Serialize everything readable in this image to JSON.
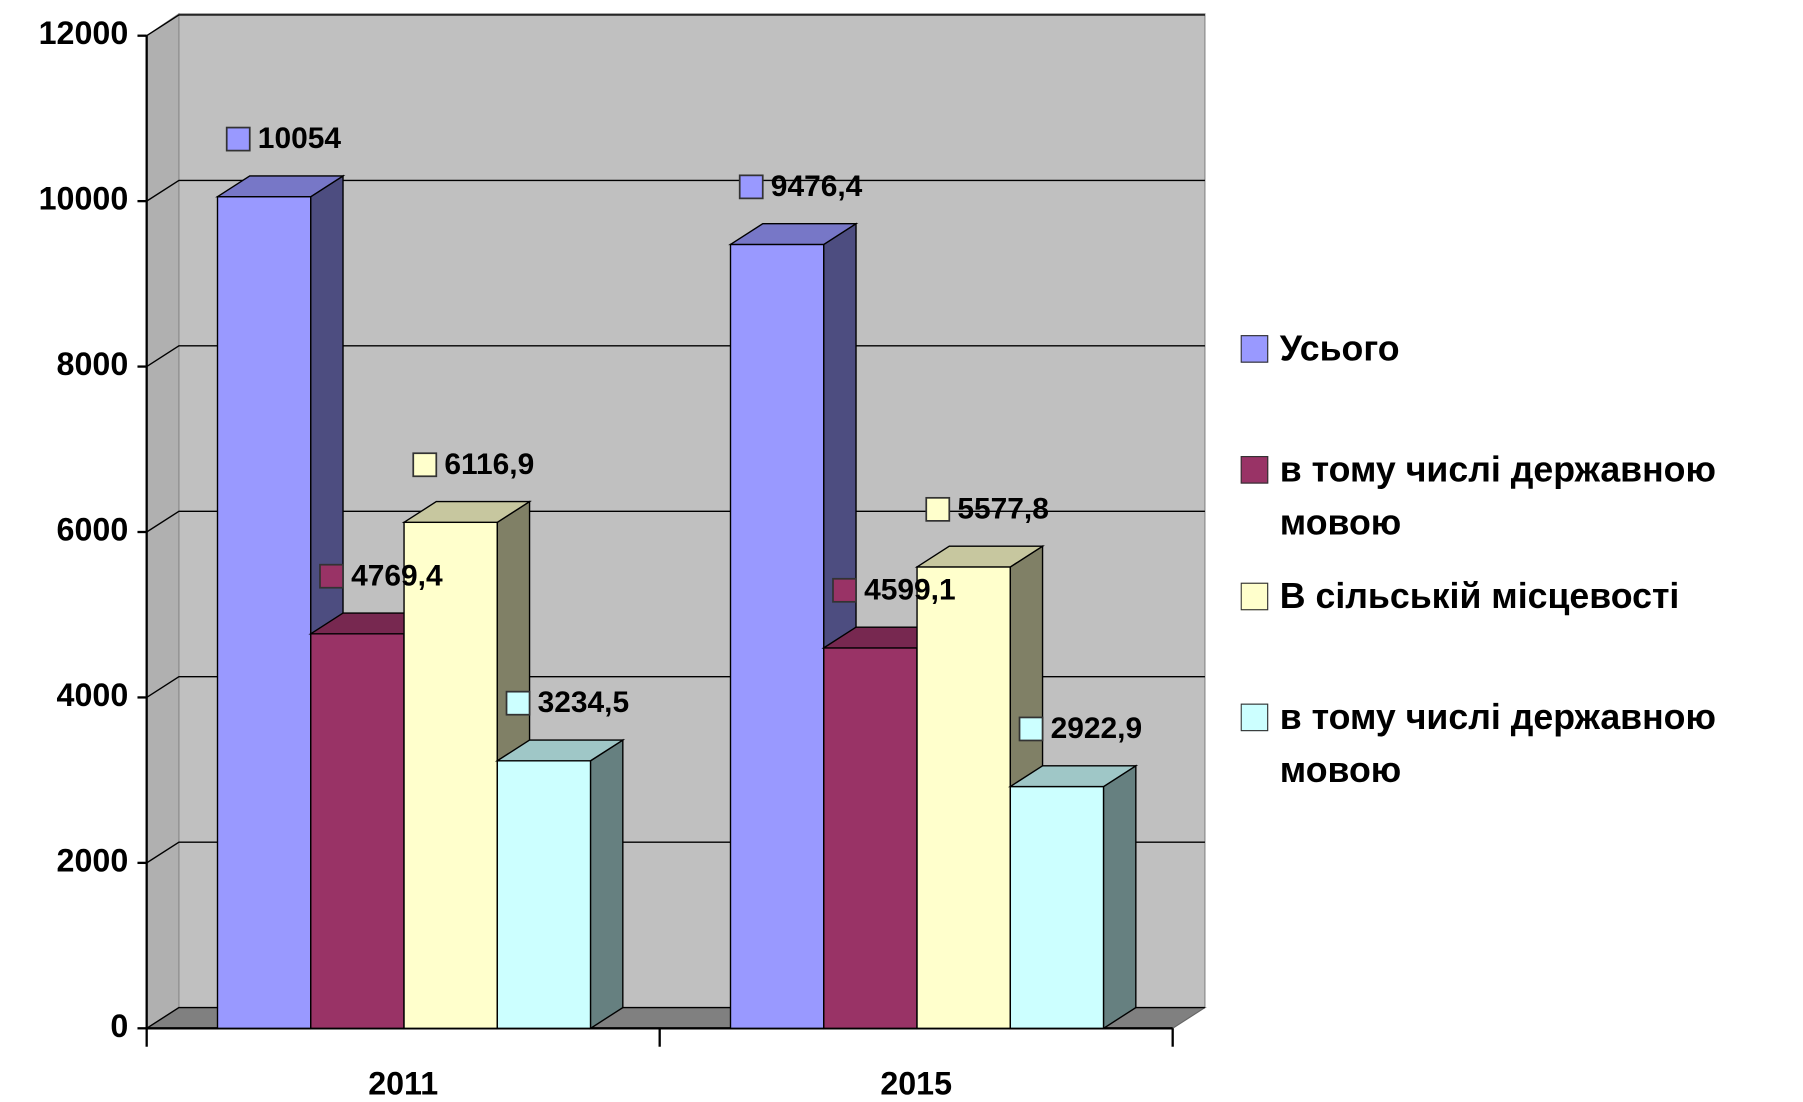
{
  "chart_data": {
    "type": "bar3d",
    "categories": [
      "2011",
      "2015"
    ],
    "series": [
      {
        "name": "Усього",
        "color": "#9999ff",
        "values": [
          10054,
          9476.4
        ],
        "value_labels": [
          "10054",
          "9476,4"
        ]
      },
      {
        "name": "в тому числі державною мовою",
        "color": "#993366",
        "values": [
          4769.4,
          4599.1
        ],
        "value_labels": [
          "4769,4",
          "4599,1"
        ]
      },
      {
        "name": "В сільській місцевості",
        "color": "#ffffcc",
        "values": [
          6116.9,
          5577.8
        ],
        "value_labels": [
          "6116,9",
          "5577,8"
        ]
      },
      {
        "name": "в тому числі державною мовою",
        "color": "#ccffff",
        "values": [
          3234.5,
          2922.9
        ],
        "value_labels": [
          "3234,5",
          "2922,9"
        ]
      }
    ],
    "ylim": [
      0,
      12000
    ],
    "yticks": [
      0,
      2000,
      4000,
      6000,
      8000,
      10000,
      12000
    ],
    "grid": true,
    "legend": "right"
  }
}
